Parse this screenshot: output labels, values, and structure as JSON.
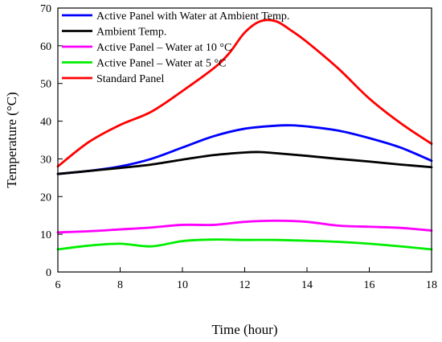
{
  "chart_data": {
    "type": "line",
    "title": "",
    "xlabel": "Time (hour)",
    "ylabel": "Temperature (°C)",
    "xlim": [
      6,
      18
    ],
    "ylim": [
      0,
      70
    ],
    "xticks": [
      6,
      8,
      10,
      12,
      14,
      16,
      18
    ],
    "yticks": [
      0,
      10,
      20,
      30,
      40,
      50,
      60,
      70
    ],
    "grid": false,
    "legend_position": "top-left",
    "series": [
      {
        "name": "Active Panel with Water at Ambient Temp.",
        "color": "#0000ff",
        "x": [
          6,
          7,
          8,
          9,
          10,
          11,
          12,
          13,
          13.5,
          14,
          15,
          16,
          17,
          18
        ],
        "y": [
          26,
          26.8,
          28,
          30,
          33,
          36,
          38,
          38.8,
          38.9,
          38.6,
          37.5,
          35.5,
          33,
          29.5
        ]
      },
      {
        "name": "Ambient Temp.",
        "color": "#000000",
        "x": [
          6,
          7,
          8,
          9,
          10,
          11,
          12,
          12.5,
          13,
          14,
          15,
          16,
          17,
          18
        ],
        "y": [
          26,
          26.8,
          27.6,
          28.5,
          29.8,
          31,
          31.7,
          31.8,
          31.5,
          30.8,
          30,
          29.3,
          28.5,
          27.8
        ]
      },
      {
        "name": "Active Panel – Water at 10 °C",
        "color": "#ff00ff",
        "x": [
          6,
          7,
          8,
          9,
          10,
          11,
          12,
          13,
          14,
          15,
          16,
          17,
          18
        ],
        "y": [
          10.5,
          10.8,
          11.3,
          11.8,
          12.5,
          12.5,
          13.3,
          13.6,
          13.3,
          12.3,
          12,
          11.7,
          11
        ]
      },
      {
        "name": "Active Panel – Water at 5 °C",
        "color": "#00ee00",
        "x": [
          6,
          7,
          8,
          9,
          10,
          11,
          12,
          13,
          14,
          15,
          16,
          17,
          18
        ],
        "y": [
          6,
          7,
          7.5,
          6.8,
          8.2,
          8.6,
          8.5,
          8.5,
          8.3,
          8,
          7.5,
          6.8,
          6
        ]
      },
      {
        "name": "Standard Panel",
        "color": "#ff0000",
        "x": [
          6,
          7,
          8,
          9,
          10,
          11,
          11.5,
          12,
          12.5,
          13,
          13.5,
          14,
          15,
          16,
          17,
          18
        ],
        "y": [
          28,
          34.5,
          39,
          42.5,
          48,
          54,
          58,
          63.5,
          66.5,
          66.5,
          64,
          61,
          54,
          46,
          39.5,
          34
        ]
      }
    ]
  }
}
